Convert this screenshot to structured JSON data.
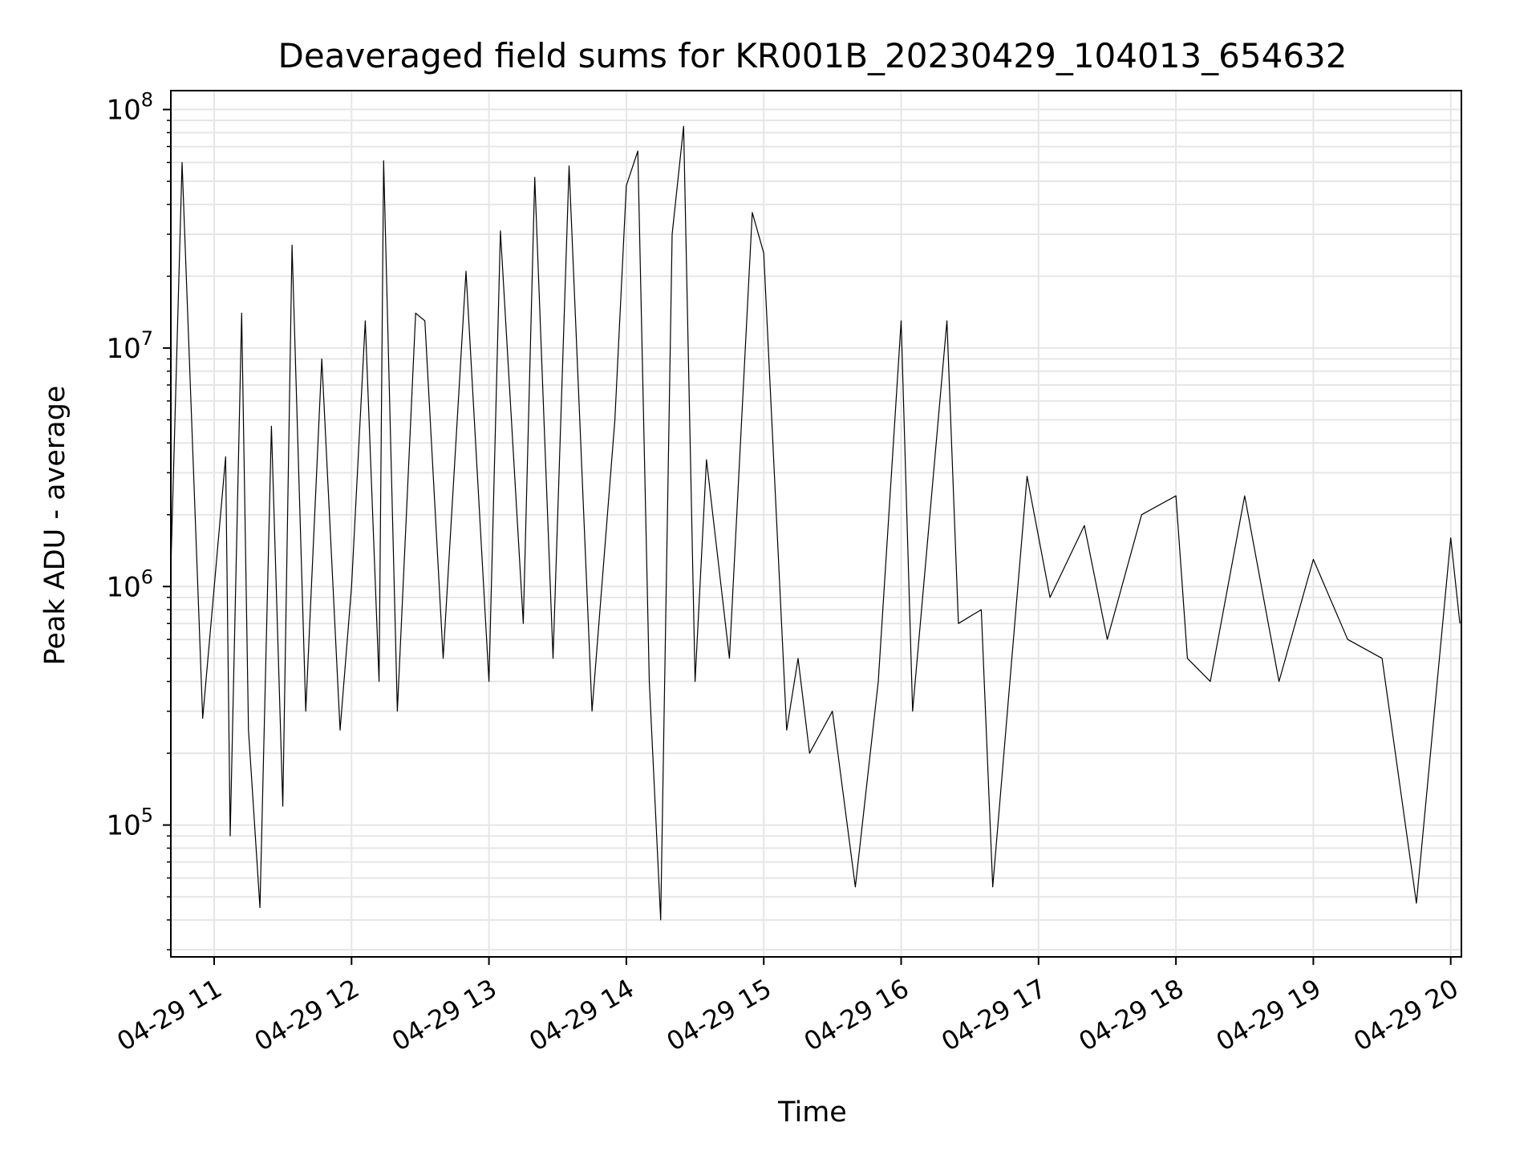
{
  "chart_data": {
    "type": "line",
    "title": "Deaveraged field sums for KR001B_20230429_104013_654632",
    "xlabel": "Time",
    "ylabel": "Peak ADU - average",
    "yscale": "log",
    "ylim": [
      28000,
      120000000
    ],
    "xlim": [
      "2023-04-29 10:40",
      "2023-04-29 20:04"
    ],
    "xticks": [
      "04-29 11",
      "04-29 12",
      "04-29 13",
      "04-29 14",
      "04-29 15",
      "04-29 16",
      "04-29 17",
      "04-29 18",
      "04-29 19",
      "04-29 20"
    ],
    "yticks": [
      {
        "base": "10",
        "exp": "5",
        "value": 100000
      },
      {
        "base": "10",
        "exp": "6",
        "value": 1000000
      },
      {
        "base": "10",
        "exp": "7",
        "value": 10000000
      },
      {
        "base": "10",
        "exp": "8",
        "value": 100000000
      }
    ],
    "grid": true,
    "line_color": "#000000",
    "grid_color": "#e6e6e6",
    "series": [
      {
        "x": [
          "2023-04-29 10:40",
          "2023-04-29 10:46",
          "2023-04-29 10:55",
          "2023-04-29 11:05",
          "2023-04-29 11:07",
          "2023-04-29 11:12",
          "2023-04-29 11:15",
          "2023-04-29 11:20",
          "2023-04-29 11:25",
          "2023-04-29 11:30",
          "2023-04-29 11:34",
          "2023-04-29 11:40",
          "2023-04-29 11:47",
          "2023-04-29 11:55",
          "2023-04-29 12:00",
          "2023-04-29 12:06",
          "2023-04-29 12:12",
          "2023-04-29 12:14",
          "2023-04-29 12:20",
          "2023-04-29 12:28",
          "2023-04-29 12:32",
          "2023-04-29 12:40",
          "2023-04-29 12:50",
          "2023-04-29 13:00",
          "2023-04-29 13:05",
          "2023-04-29 13:15",
          "2023-04-29 13:20",
          "2023-04-29 13:28",
          "2023-04-29 13:35",
          "2023-04-29 13:45",
          "2023-04-29 13:55",
          "2023-04-29 14:00",
          "2023-04-29 14:05",
          "2023-04-29 14:10",
          "2023-04-29 14:15",
          "2023-04-29 14:20",
          "2023-04-29 14:25",
          "2023-04-29 14:30",
          "2023-04-29 14:35",
          "2023-04-29 14:45",
          "2023-04-29 14:55",
          "2023-04-29 15:00",
          "2023-04-29 15:10",
          "2023-04-29 15:15",
          "2023-04-29 15:20",
          "2023-04-29 15:30",
          "2023-04-29 15:40",
          "2023-04-29 15:50",
          "2023-04-29 16:00",
          "2023-04-29 16:05",
          "2023-04-29 16:20",
          "2023-04-29 16:25",
          "2023-04-29 16:35",
          "2023-04-29 16:40",
          "2023-04-29 16:55",
          "2023-04-29 17:05",
          "2023-04-29 17:20",
          "2023-04-29 17:30",
          "2023-04-29 17:45",
          "2023-04-29 18:00",
          "2023-04-29 18:05",
          "2023-04-29 18:15",
          "2023-04-29 18:30",
          "2023-04-29 18:45",
          "2023-04-29 19:00",
          "2023-04-29 19:15",
          "2023-04-29 19:30",
          "2023-04-29 19:45",
          "2023-04-29 20:00",
          "2023-04-29 20:04"
        ],
        "y": [
          500000,
          60000000,
          280000,
          3500000,
          90000,
          14000000,
          250000,
          45000,
          4700000,
          120000,
          27000000,
          300000,
          9000000,
          250000,
          1000000,
          13000000,
          400000,
          61000000,
          300000,
          14000000,
          13000000,
          500000,
          21000000,
          400000,
          31000000,
          700000,
          52000000,
          500000,
          58000000,
          300000,
          5000000,
          48000000,
          67000000,
          400000,
          40000,
          30000000,
          85000000,
          400000,
          3400000,
          500000,
          37000000,
          25000000,
          250000,
          500000,
          200000,
          300000,
          55000,
          400000,
          13000000,
          300000,
          13000000,
          700000,
          800000,
          55000,
          2900000,
          900000,
          1800000,
          600000,
          2000000,
          2400000,
          500000,
          400000,
          2400000,
          400000,
          1300000,
          600000,
          500000,
          47000,
          1600000,
          700000
        ]
      }
    ]
  }
}
